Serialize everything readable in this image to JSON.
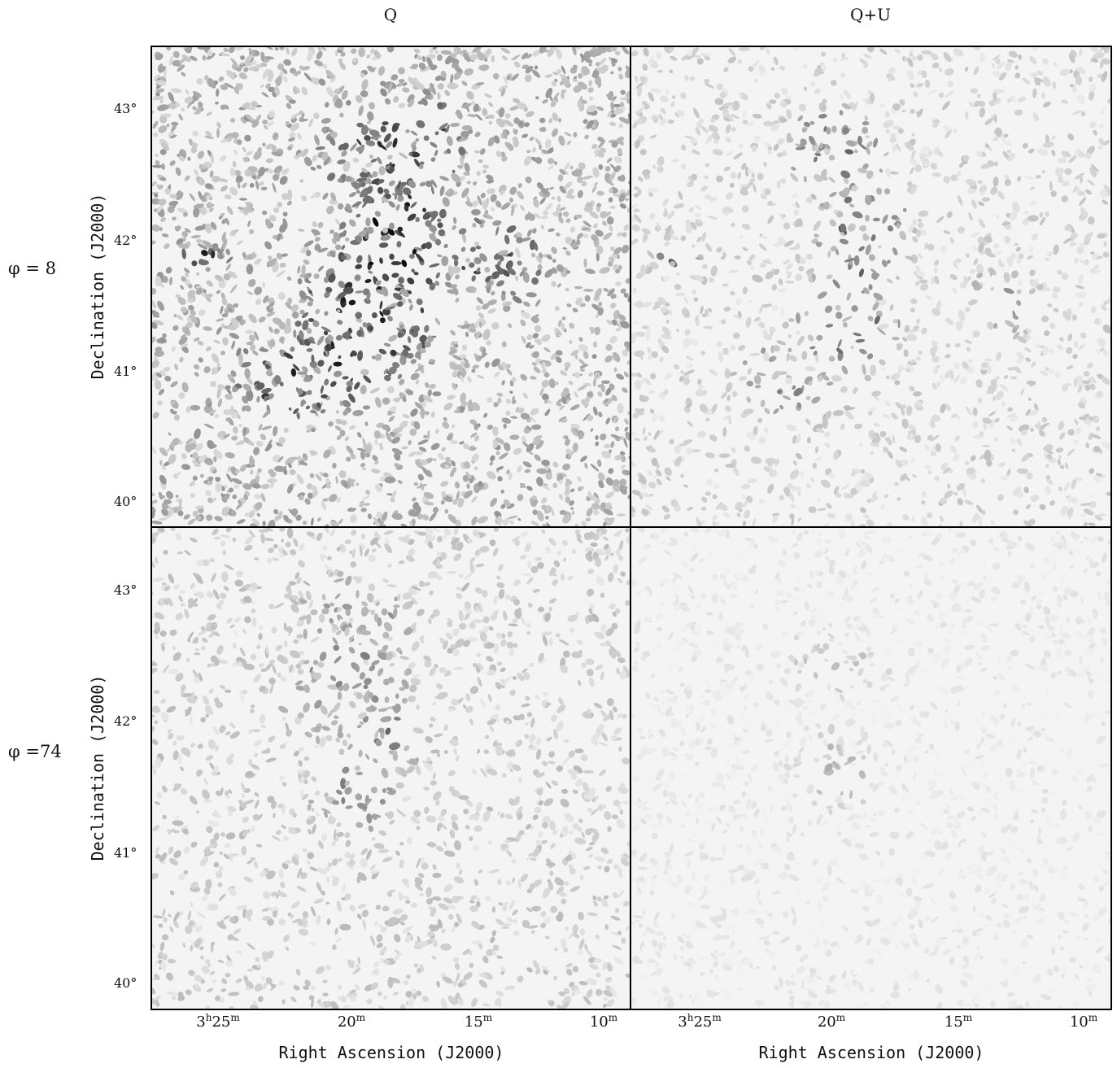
{
  "columns": [
    {
      "title": "Q"
    },
    {
      "title": "Q+U"
    }
  ],
  "rows": [
    {
      "label": "φ = 8",
      "ylabel": "Declination (J2000)"
    },
    {
      "label": "φ =74",
      "ylabel": "Declination (J2000)"
    }
  ],
  "xlabel": "Right Ascension (J2000)",
  "yticks": [
    "43°",
    "42°",
    "41°",
    "40°"
  ],
  "xticks": [
    {
      "main": "3",
      "sup1": "h",
      "mid": "25",
      "sup2": "m"
    },
    {
      "main": "",
      "sup1": "",
      "mid": "20",
      "sup2": "m"
    },
    {
      "main": "",
      "sup1": "",
      "mid": "15",
      "sup2": "m"
    },
    {
      "main": "",
      "sup1": "",
      "mid": "10",
      "sup2": "m"
    }
  ],
  "colors": {
    "frame": "#000000",
    "background": "#ffffff",
    "ink": "#111111"
  }
}
